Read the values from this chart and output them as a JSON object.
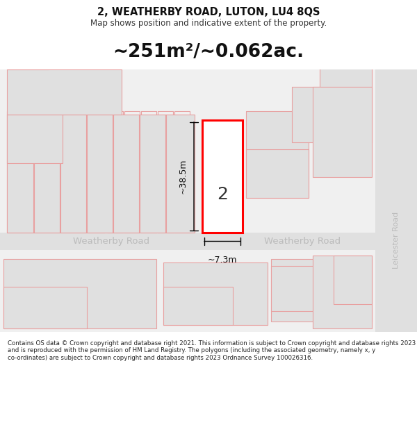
{
  "title_line1": "2, WEATHERBY ROAD, LUTON, LU4 8QS",
  "title_line2": "Map shows position and indicative extent of the property.",
  "area_text": "~251m²/~0.062ac.",
  "dim_width": "~7.3m",
  "dim_height": "~38.5m",
  "number_label": "2",
  "road_name_left": "Weatherby Road",
  "road_name_right": "Weatherby Road",
  "road_name_leic": "Leicester Road",
  "copyright_text": "Contains OS data © Crown copyright and database right 2021. This information is subject to Crown copyright and database rights 2023 and is reproduced with the permission of HM Land Registry. The polygons (including the associated geometry, namely x, y co-ordinates) are subject to Crown copyright and database rights 2023 Ordnance Survey 100026316.",
  "bg_color": "#ffffff",
  "map_bg": "#f0f0f0",
  "plot_fill": "#ffffff",
  "plot_edge": "#ff0000",
  "nb_fill": "#e0e0e0",
  "nb_edge": "#e8a0a0",
  "road_color": "#e0e0e0",
  "dim_color": "#111111",
  "road_text_color": "#bbbbbb",
  "leic_text_color": "#bbbbbb"
}
